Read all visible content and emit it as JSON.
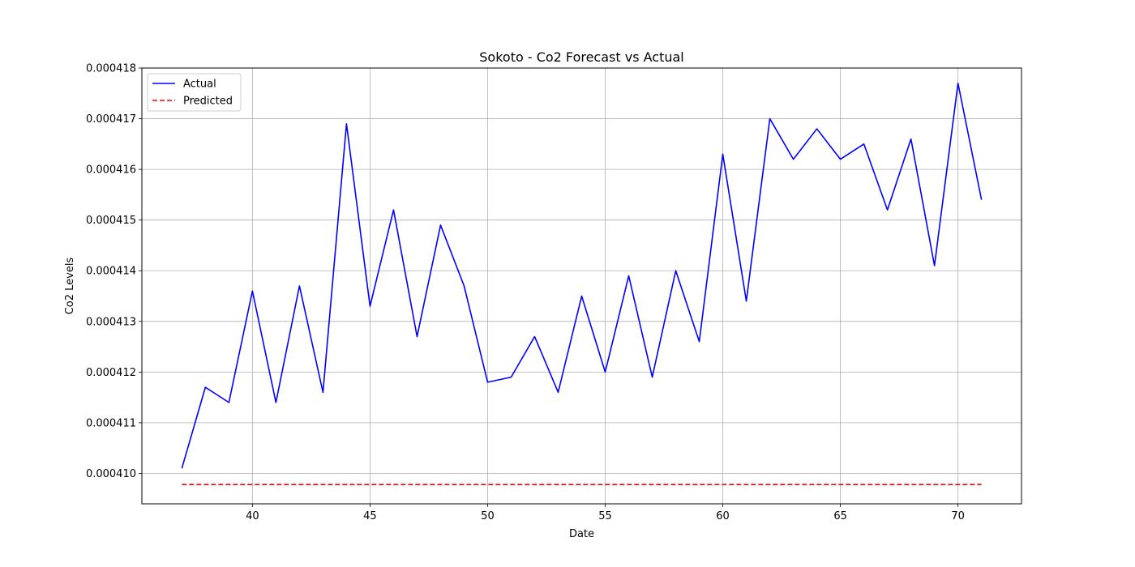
{
  "chart_data": {
    "type": "line",
    "title": "Sokoto - Co2 Forecast vs Actual",
    "xlabel": "Date",
    "ylabel": "Co2 Levels",
    "xlim": [
      35.3,
      72.7
    ],
    "ylim": [
      0.0004094,
      0.000418
    ],
    "xticks": [
      40,
      45,
      50,
      55,
      60,
      65,
      70
    ],
    "yticks": [
      0.00041,
      0.000411,
      0.000412,
      0.000413,
      0.000414,
      0.000415,
      0.000416,
      0.000417,
      0.000418
    ],
    "ytick_labels": [
      "0.000410",
      "0.000411",
      "0.000412",
      "0.000413",
      "0.000414",
      "0.000415",
      "0.000416",
      "0.000417",
      "0.000418"
    ],
    "grid": true,
    "legend_position": "top-left",
    "series": [
      {
        "name": "Actual",
        "color": "#0000ff",
        "style": "solid",
        "x": [
          37,
          38,
          39,
          40,
          41,
          42,
          43,
          44,
          45,
          46,
          47,
          48,
          49,
          50,
          51,
          52,
          53,
          54,
          55,
          56,
          57,
          58,
          59,
          60,
          61,
          62,
          63,
          64,
          65,
          66,
          67,
          68,
          69,
          70,
          71
        ],
        "values": [
          0.0004101,
          0.0004117,
          0.0004114,
          0.0004136,
          0.0004114,
          0.0004137,
          0.0004116,
          0.0004169,
          0.0004133,
          0.0004152,
          0.0004127,
          0.0004149,
          0.0004137,
          0.0004118,
          0.0004119,
          0.0004127,
          0.0004116,
          0.0004135,
          0.000412,
          0.0004139,
          0.0004119,
          0.000414,
          0.0004126,
          0.0004163,
          0.0004134,
          0.000417,
          0.0004162,
          0.0004168,
          0.0004162,
          0.0004165,
          0.0004152,
          0.0004166,
          0.0004141,
          0.0004177,
          0.0004154
        ]
      },
      {
        "name": "Predicted",
        "color": "#ff0000",
        "style": "dashed",
        "x": [
          37,
          71
        ],
        "values": [
          0.00040978,
          0.00040978
        ]
      }
    ]
  }
}
